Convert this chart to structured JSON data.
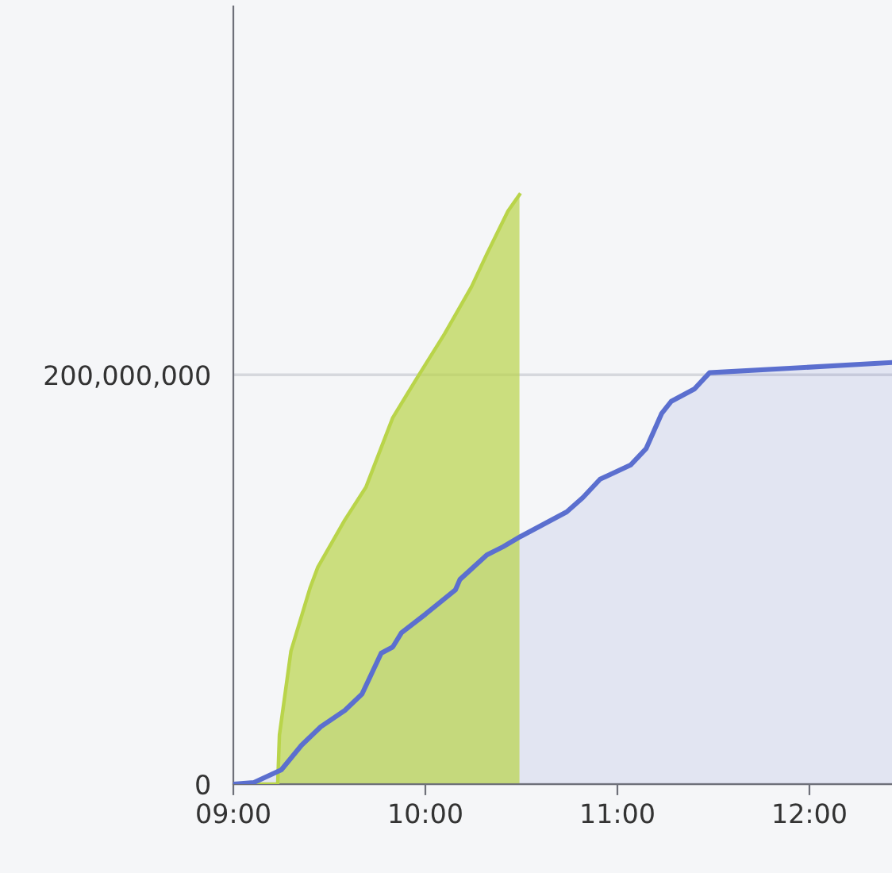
{
  "chart_data": {
    "type": "area",
    "series": [
      {
        "color": "#5b6fcf",
        "x": [
          9.0,
          9.107,
          9.25,
          9.355,
          9.455,
          9.58,
          9.67,
          9.77,
          9.83,
          9.876,
          10.0,
          10.157,
          10.18,
          10.32,
          10.405,
          10.496,
          10.736,
          10.82,
          10.91,
          11.07,
          11.15,
          11.23,
          11.28,
          11.4,
          11.48,
          12.43
        ],
        "values": [
          0,
          800000,
          7000000,
          19000000,
          28000000,
          36000000,
          44000000,
          64000000,
          67000000,
          74000000,
          83000000,
          95000000,
          100000000,
          112000000,
          116000000,
          121000000,
          133000000,
          140000000,
          149000000,
          156000000,
          164000000,
          181000000,
          187000000,
          193000000,
          201000000,
          206000000
        ]
      },
      {
        "color": "#b9d44a",
        "x": [
          9.0,
          9.231,
          9.24,
          9.3,
          9.4,
          9.44,
          9.58,
          9.69,
          9.83,
          9.96,
          10.1,
          10.24,
          10.32,
          10.43,
          10.49
        ],
        "values": [
          0,
          0,
          24000000,
          65000000,
          96000000,
          106000000,
          129000000,
          145000000,
          179000000,
          199000000,
          220000000,
          243000000,
          259000000,
          280000000,
          288000000
        ]
      }
    ],
    "xlim": [
      9,
      12.43
    ],
    "xticks": [
      {
        "value": 9,
        "label": "09:00"
      },
      {
        "value": 10,
        "label": "10:00"
      },
      {
        "value": 11,
        "label": "11:00"
      },
      {
        "value": 12,
        "label": "12:00"
      }
    ],
    "ylim": [
      0,
      380000000
    ],
    "yticks": [
      {
        "value": 0,
        "label": "0"
      },
      {
        "value": 200000000,
        "label": "200,000,000"
      }
    ],
    "grid": "y"
  }
}
